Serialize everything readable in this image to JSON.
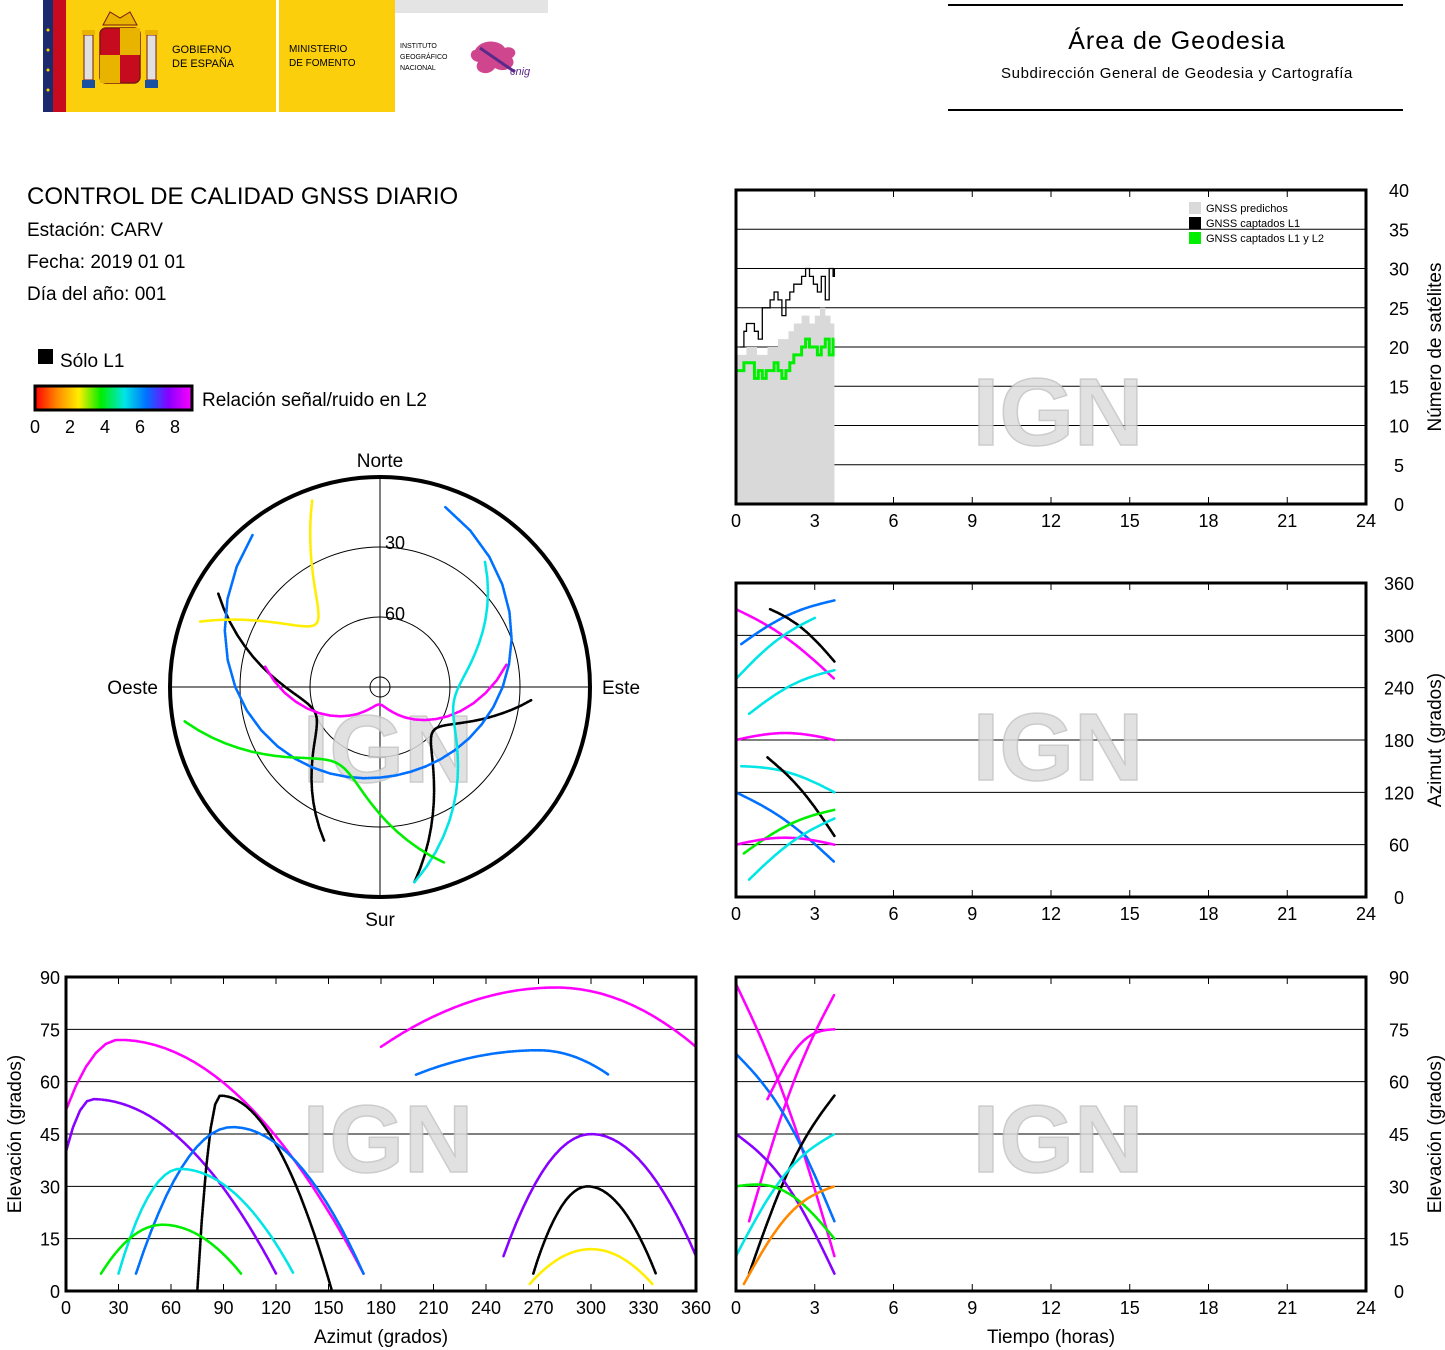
{
  "header": {
    "gov_line1": "GOBIERNO",
    "gov_line2": "DE ESPAÑA",
    "min_line1": "MINISTERIO",
    "min_line2": "DE FOMENTO",
    "ign_line1": "INSTITUTO",
    "ign_line2": "GEOGRÁFICO",
    "ign_line3": "NACIONAL",
    "cnig_logo": "cnig",
    "area_title": "Área de Geodesia",
    "area_subtitle": "Subdirección General de Geodesia y Cartografía"
  },
  "info": {
    "title": "CONTROL DE CALIDAD GNSS DIARIO",
    "station": "Estación: CARV",
    "date": "Fecha: 2019 01 01",
    "doy": "Día del año: 001"
  },
  "legend": {
    "l1_only": "Sólo L1",
    "snr_label": "Relación señal/ruido en L2",
    "colorbar_ticks": [
      "0",
      "2",
      "4",
      "6",
      "8"
    ]
  },
  "watermark": "IGN",
  "colors": {
    "predicted": "#d9d9d9",
    "l1": "#000000",
    "l1l2": "#00ee00",
    "snr_scale": [
      "#ff0000",
      "#ff8800",
      "#ffee00",
      "#00ee00",
      "#00e5e5",
      "#0070ff",
      "#8800ff",
      "#ff00ff"
    ]
  },
  "chart_data": [
    {
      "type": "line",
      "id": "satellite-count",
      "ylabel": "Número de satélites",
      "x_ticks": [
        "0",
        "3",
        "6",
        "9",
        "12",
        "15",
        "18",
        "21",
        "24"
      ],
      "y_ticks": [
        "0",
        "5",
        "10",
        "15",
        "20",
        "25",
        "30",
        "35",
        "40"
      ],
      "xlim": [
        0,
        24
      ],
      "ylim": [
        0,
        40
      ],
      "legend_position": "top-right",
      "series": [
        {
          "name": "GNSS predichos",
          "kind": "area",
          "x": [
            0,
            0.4,
            0.4,
            0.8,
            0.8,
            1.2,
            1.2,
            1.6,
            1.6,
            2.0,
            2.0,
            2.2,
            2.2,
            2.5,
            2.5,
            2.8,
            2.8,
            3.0,
            3.0,
            3.2,
            3.2,
            3.4,
            3.4,
            3.6,
            3.6,
            3.75
          ],
          "y": [
            19,
            19,
            20,
            20,
            19,
            19,
            20,
            20,
            21,
            21,
            22,
            22,
            23,
            23,
            24,
            24,
            23,
            23,
            24,
            24,
            25,
            25,
            24,
            24,
            23,
            23
          ]
        },
        {
          "name": "GNSS captados L1",
          "kind": "step",
          "x": [
            0.15,
            0.3,
            0.4,
            0.55,
            0.7,
            0.85,
            1.0,
            1.15,
            1.3,
            1.45,
            1.6,
            1.75,
            1.9,
            2.05,
            2.2,
            2.35,
            2.5,
            2.65,
            2.8,
            2.95,
            3.1,
            3.25,
            3.4,
            3.55,
            3.7,
            3.75
          ],
          "y": [
            20,
            22,
            23,
            23,
            22,
            21,
            25,
            25,
            26,
            27,
            26,
            24,
            26,
            27,
            28,
            28,
            29,
            30,
            29,
            28,
            27,
            29,
            26,
            30,
            29,
            30
          ]
        },
        {
          "name": "GNSS captados L1 y L2",
          "kind": "step",
          "x": [
            0.05,
            0.3,
            0.5,
            0.7,
            0.85,
            1.0,
            1.15,
            1.3,
            1.45,
            1.6,
            1.75,
            1.9,
            2.05,
            2.2,
            2.35,
            2.5,
            2.65,
            2.8,
            2.95,
            3.1,
            3.25,
            3.4,
            3.55,
            3.7,
            3.75
          ],
          "y": [
            17,
            18,
            18,
            16,
            17,
            16,
            17,
            17,
            18,
            17,
            16,
            17,
            18,
            19,
            19,
            20,
            21,
            20,
            20,
            19,
            20,
            21,
            19,
            21,
            21
          ]
        }
      ]
    },
    {
      "type": "scatter",
      "id": "azimuth-time",
      "ylabel": "Azimut (grados)",
      "x_ticks": [
        "0",
        "3",
        "6",
        "9",
        "12",
        "15",
        "18",
        "21",
        "24"
      ],
      "y_ticks": [
        "0",
        "60",
        "120",
        "180",
        "240",
        "300",
        "360"
      ],
      "xlim": [
        0,
        24
      ],
      "ylim": [
        0,
        360
      ],
      "tracks": [
        {
          "t": [
            0.0,
            3.75
          ],
          "az": [
            330,
            250
          ],
          "snr": 7.5
        },
        {
          "t": [
            0.2,
            3.75
          ],
          "az": [
            290,
            340
          ],
          "snr": 6
        },
        {
          "t": [
            0.5,
            3.75
          ],
          "az": [
            210,
            260
          ],
          "snr": 5
        },
        {
          "t": [
            1.3,
            3.75
          ],
          "az": [
            330,
            270
          ],
          "snr": "L1"
        },
        {
          "t": [
            0.0,
            3.0
          ],
          "az": [
            250,
            320
          ],
          "snr": 4
        },
        {
          "t": [
            0.0,
            3.75
          ],
          "az": [
            180,
            180
          ],
          "snr": 7.5
        },
        {
          "t": [
            0.2,
            3.75
          ],
          "az": [
            150,
            120
          ],
          "snr": 5
        },
        {
          "t": [
            1.2,
            3.75
          ],
          "az": [
            160,
            70
          ],
          "snr": "L1"
        },
        {
          "t": [
            0.0,
            3.75
          ],
          "az": [
            120,
            40
          ],
          "snr": 6
        },
        {
          "t": [
            0.3,
            3.75
          ],
          "az": [
            50,
            100
          ],
          "snr": 3.5
        },
        {
          "t": [
            0.0,
            3.75
          ],
          "az": [
            60,
            60
          ],
          "snr": 7.5
        },
        {
          "t": [
            0.5,
            3.75
          ],
          "az": [
            20,
            90
          ],
          "snr": 4.5
        }
      ]
    },
    {
      "type": "scatter",
      "id": "elevation-azimuth",
      "xlabel": "Azimut (grados)",
      "ylabel": "Elevación (grados)",
      "x_ticks": [
        "0",
        "30",
        "60",
        "90",
        "120",
        "150",
        "180",
        "210",
        "240",
        "270",
        "300",
        "330",
        "360"
      ],
      "y_ticks": [
        "0",
        "15",
        "30",
        "45",
        "60",
        "75",
        "90"
      ],
      "xlim": [
        0,
        360
      ],
      "ylim": [
        0,
        90
      ],
      "tracks": [
        {
          "az": [
            0,
            170
          ],
          "peak_az": 30,
          "peak_el": 72,
          "end_el": 5,
          "snr": 7.5
        },
        {
          "az": [
            0,
            120
          ],
          "peak_az": 15,
          "peak_el": 55,
          "end_el": 5,
          "snr": 7
        },
        {
          "az": [
            75,
            152
          ],
          "peak_az": 88,
          "peak_el": 56,
          "end_el": 0,
          "snr": "L1"
        },
        {
          "az": [
            40,
            170
          ],
          "peak_az": 95,
          "peak_el": 47,
          "end_el": 5,
          "snr": 6
        },
        {
          "az": [
            30,
            130
          ],
          "peak_az": 65,
          "peak_el": 35,
          "end_el": 5,
          "snr": 4
        },
        {
          "az": [
            20,
            100
          ],
          "peak_az": 55,
          "peak_el": 19,
          "end_el": 5,
          "snr": 3
        },
        {
          "az": [
            180,
            360
          ],
          "peak_az": 280,
          "peak_el": 87,
          "end_el": 70,
          "snr": 7.5
        },
        {
          "az": [
            200,
            310
          ],
          "peak_az": 270,
          "peak_el": 69,
          "end_el": 62,
          "snr": 5.5
        },
        {
          "az": [
            267,
            337
          ],
          "peak_az": 298,
          "peak_el": 30,
          "end_el": 5,
          "snr": "L1"
        },
        {
          "az": [
            250,
            360
          ],
          "peak_az": 300,
          "peak_el": 45,
          "end_el": 10,
          "snr": 6.5
        },
        {
          "az": [
            265,
            335
          ],
          "peak_az": 300,
          "peak_el": 12,
          "end_el": 2,
          "snr": 2.5
        }
      ]
    },
    {
      "type": "scatter",
      "id": "elevation-time",
      "xlabel": "Tiempo (horas)",
      "ylabel": "Elevación (grados)",
      "x_ticks": [
        "0",
        "3",
        "6",
        "9",
        "12",
        "15",
        "18",
        "21",
        "24"
      ],
      "y_ticks": [
        "0",
        "15",
        "30",
        "45",
        "60",
        "75",
        "90"
      ],
      "xlim": [
        0,
        24
      ],
      "ylim": [
        0,
        90
      ],
      "tracks": [
        {
          "t": [
            0.0,
            3.75
          ],
          "el": [
            88,
            10
          ],
          "snr": 7.5
        },
        {
          "t": [
            0.5,
            3.75
          ],
          "el": [
            20,
            85
          ],
          "snr": 7.5
        },
        {
          "t": [
            0.0,
            3.75
          ],
          "el": [
            68,
            20
          ],
          "snr": 5.5
        },
        {
          "t": [
            0.5,
            3.75
          ],
          "el": [
            5,
            56
          ],
          "snr": "L1"
        },
        {
          "t": [
            0.0,
            3.75
          ],
          "el": [
            45,
            5
          ],
          "snr": 6.5
        },
        {
          "t": [
            0.0,
            3.75
          ],
          "el": [
            10,
            45
          ],
          "snr": 4.5
        },
        {
          "t": [
            0.0,
            3.75
          ],
          "el": [
            30,
            15
          ],
          "snr": 3.5
        },
        {
          "t": [
            0.3,
            3.75
          ],
          "el": [
            2,
            30
          ],
          "snr": 1.5
        },
        {
          "t": [
            1.2,
            3.75
          ],
          "el": [
            55,
            75
          ],
          "snr": 7.5
        }
      ]
    },
    {
      "type": "scatter",
      "id": "skyplot",
      "polar": true,
      "direction_labels": {
        "north": "Norte",
        "south": "Sur",
        "east": "Este",
        "west": "Oeste"
      },
      "ring_labels": [
        "30",
        "60"
      ],
      "tracks": [
        {
          "az": [
            300,
            200
          ],
          "el": [
            10,
            20
          ],
          "snr": "L1"
        },
        {
          "az": [
            95,
            170
          ],
          "el": [
            25,
            5
          ],
          "snr": "L1"
        },
        {
          "az": [
            280,
            80
          ],
          "el": [
            40,
            35
          ],
          "snr": 7.5
        },
        {
          "az": [
            320,
            20
          ],
          "el": [
            5,
            8
          ],
          "snr": 5.5
        },
        {
          "az": [
            40,
            170
          ],
          "el": [
            20,
            5
          ],
          "snr": 4.5
        },
        {
          "az": [
            260,
            160
          ],
          "el": [
            5,
            10
          ],
          "snr": 3.5
        },
        {
          "az": [
            340,
            290
          ],
          "el": [
            5,
            8
          ],
          "snr": 2.5
        }
      ]
    }
  ]
}
